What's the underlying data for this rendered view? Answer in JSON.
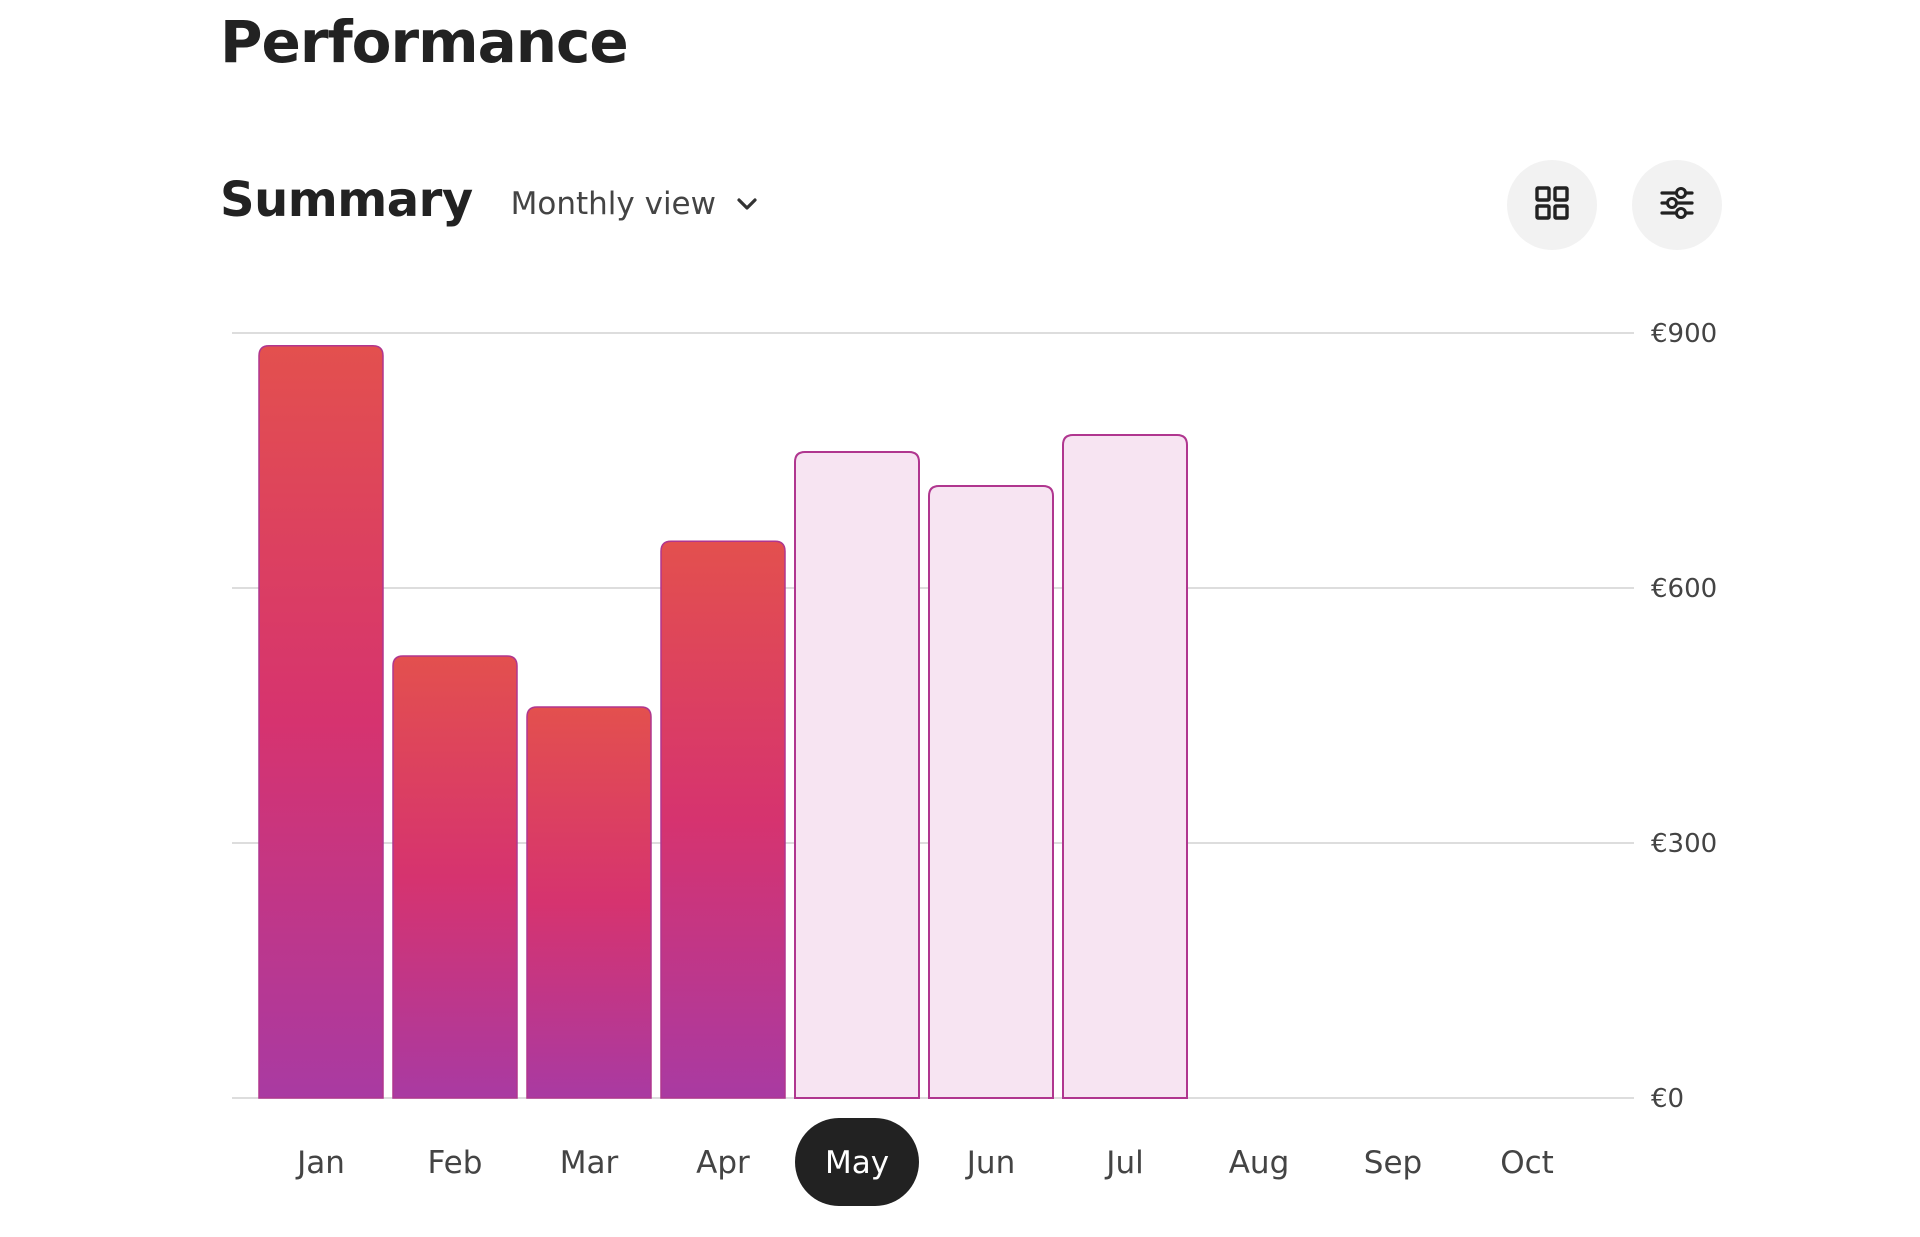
{
  "page": {
    "title": "Performance"
  },
  "summary": {
    "title": "Summary",
    "view_label": "Monthly view",
    "view_icon": "chevron-down-icon",
    "actions": [
      {
        "name": "grid-view-button",
        "icon": "grid-icon"
      },
      {
        "name": "filter-button",
        "icon": "sliders-icon"
      }
    ]
  },
  "colors": {
    "bar_gradient_top": "#e3504e",
    "bar_gradient_mid": "#d6336f",
    "bar_gradient_bottom": "#a93aa2",
    "projected_fill": "#f7e4f2",
    "projected_stroke": "#b0368f",
    "actual_stroke": "#b0368f",
    "gridline": "#dddddd",
    "selected_pill": "#222222",
    "selected_text": "#ffffff",
    "axis_text": "#444444"
  },
  "chart_data": {
    "type": "bar",
    "categories": [
      "Jan",
      "Feb",
      "Mar",
      "Apr",
      "May",
      "Jun",
      "Jul",
      "Aug",
      "Sep",
      "Oct"
    ],
    "values": [
      885,
      520,
      460,
      655,
      760,
      720,
      780,
      null,
      null,
      null
    ],
    "bar_status": [
      "actual",
      "actual",
      "actual",
      "actual",
      "projected",
      "projected",
      "projected",
      "none",
      "none",
      "none"
    ],
    "selected_category": "May",
    "ylim": [
      0,
      900
    ],
    "y_ticks": [
      0,
      300,
      600,
      900
    ],
    "y_tick_labels": [
      "€0",
      "€300",
      "€600",
      "€900"
    ],
    "y_axis_position": "right",
    "grid": true,
    "title": "",
    "xlabel": "",
    "ylabel": ""
  }
}
